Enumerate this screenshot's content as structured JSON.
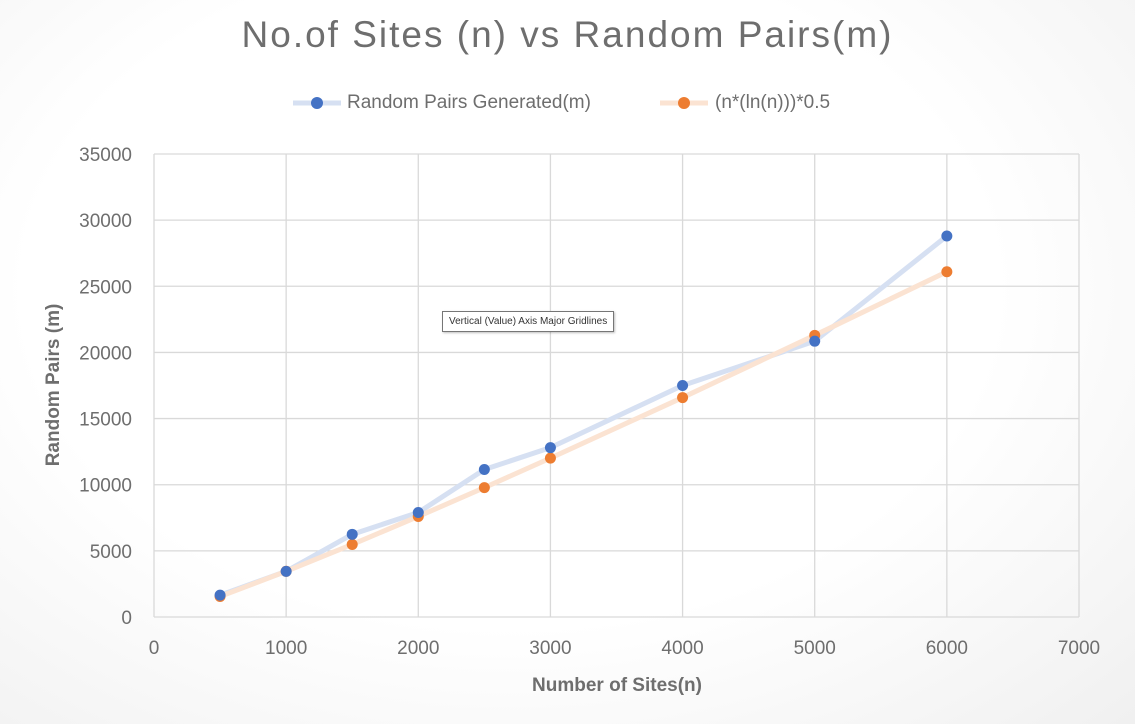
{
  "chart_data": {
    "type": "line",
    "title": "No.of Sites (n) vs Random Pairs(m)",
    "xlabel": "Number of Sites(n)",
    "ylabel": "Random Pairs (m)",
    "xlim": [
      0,
      7000
    ],
    "ylim": [
      0,
      35000
    ],
    "xticks": [
      "0",
      "1000",
      "2000",
      "3000",
      "4000",
      "5000",
      "6000",
      "7000"
    ],
    "yticks": [
      "0",
      "5000",
      "10000",
      "15000",
      "20000",
      "25000",
      "30000",
      "35000"
    ],
    "grid": true,
    "legend_position": "top",
    "series": [
      {
        "name": "Random Pairs Generated(m)",
        "marker_color": "#4472c4",
        "line_color": "#d6e0f2",
        "x": [
          500,
          1000,
          1500,
          2000,
          2500,
          3000,
          4000,
          5000,
          6000
        ],
        "y": [
          1650,
          3450,
          6250,
          7900,
          11150,
          12800,
          17500,
          20850,
          28800
        ]
      },
      {
        "name": "(n*(ln(n)))*0.5",
        "marker_color": "#ed7d31",
        "line_color": "#fbe3d2",
        "x": [
          500,
          1000,
          1500,
          2000,
          2500,
          3000,
          4000,
          5000,
          6000
        ],
        "y": [
          1554,
          3454,
          5485,
          7601,
          9780,
          12010,
          16588,
          21293,
          26099
        ]
      }
    ]
  },
  "tooltip": {
    "text": "Vertical (Value) Axis Major Gridlines"
  }
}
